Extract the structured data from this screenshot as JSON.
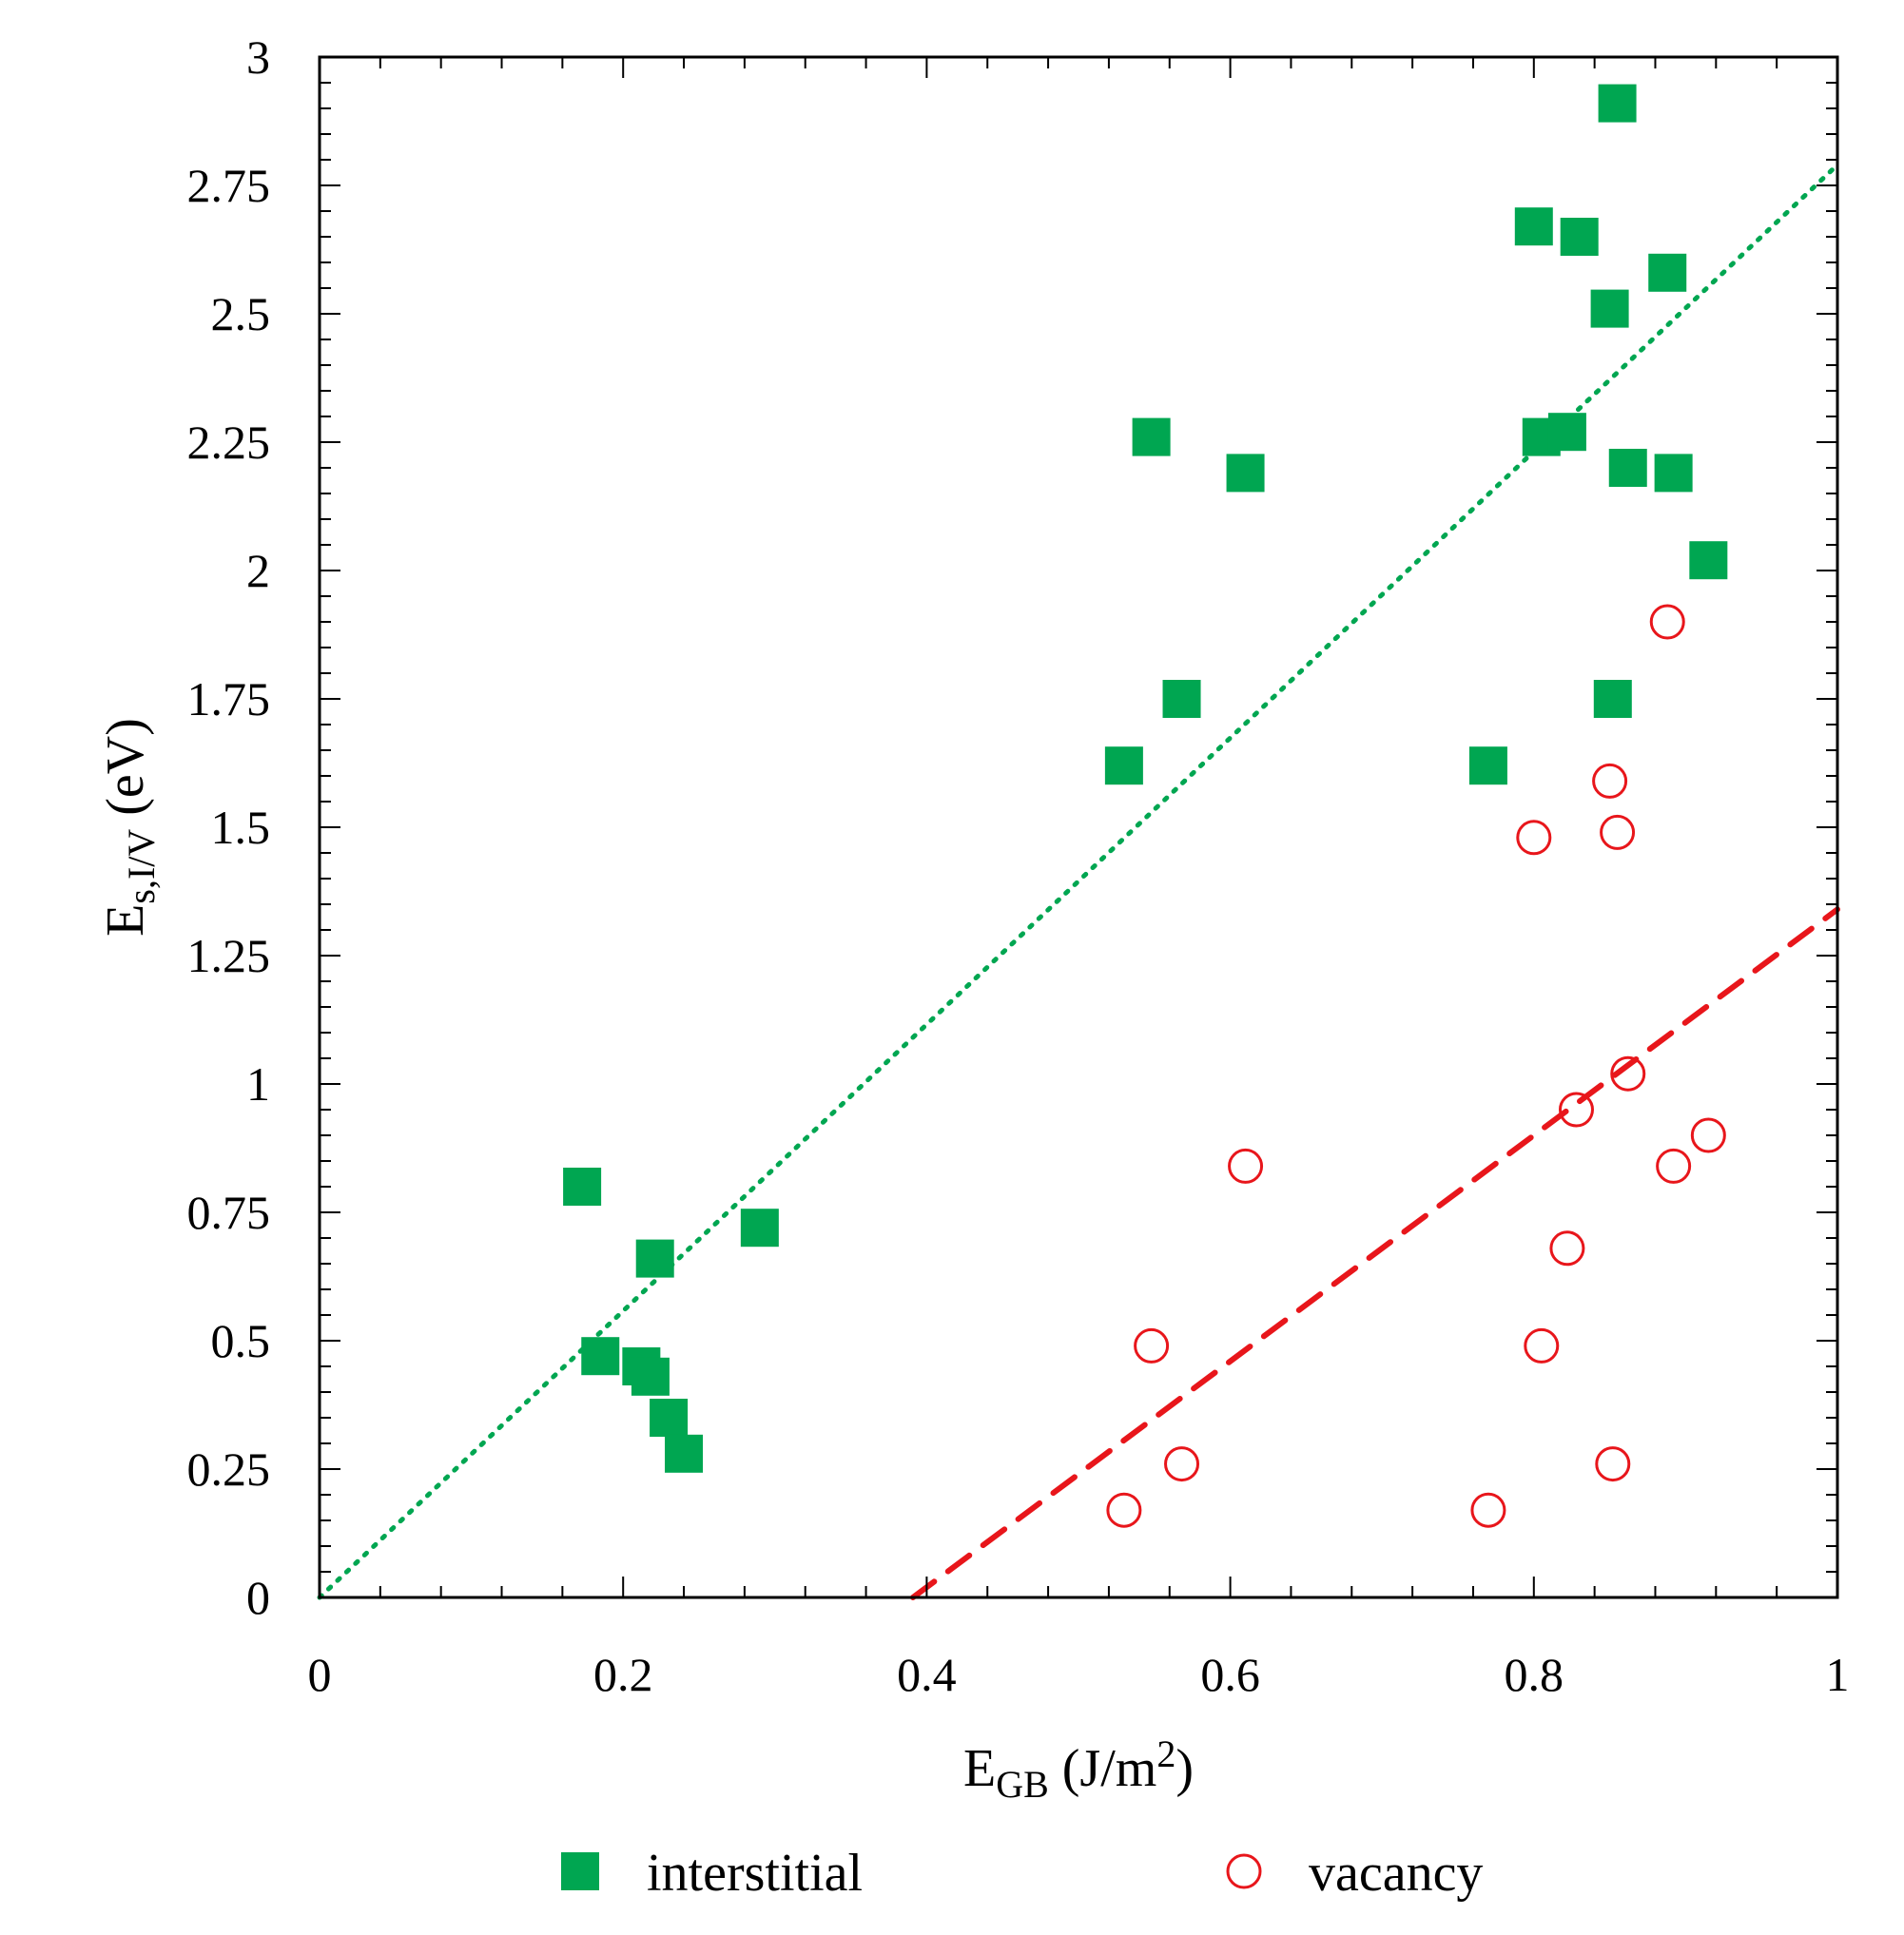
{
  "chart_data": {
    "type": "scatter",
    "xlabel": {
      "main": "E",
      "sub": "GB",
      "unit_pre": " (J/m",
      "sup": "2",
      "unit_post": ")"
    },
    "ylabel": {
      "main": "E",
      "sub": "s,I/V",
      "unit": " (eV)"
    },
    "xlim": [
      0,
      1
    ],
    "ylim": [
      0,
      3
    ],
    "x_ticks": [
      0,
      0.2,
      0.4,
      0.6,
      0.8,
      1
    ],
    "x_tick_labels": [
      "0",
      "0.2",
      "0.4",
      "0.6",
      "0.8",
      "1"
    ],
    "y_ticks": [
      0,
      0.25,
      0.5,
      0.75,
      1,
      1.25,
      1.5,
      1.75,
      2,
      2.25,
      2.5,
      2.75,
      3
    ],
    "y_tick_labels": [
      "0",
      "0.25",
      "0.5",
      "0.75",
      "1",
      "1.25",
      "1.5",
      "1.75",
      "2",
      "2.25",
      "2.5",
      "2.75",
      "3"
    ],
    "grid": false,
    "legend_position": "bottom",
    "series": [
      {
        "name": "interstitial",
        "marker": "filled-square",
        "color": "#00a651",
        "points": [
          [
            0.173,
            0.8
          ],
          [
            0.185,
            0.47
          ],
          [
            0.212,
            0.45
          ],
          [
            0.218,
            0.43
          ],
          [
            0.221,
            0.66
          ],
          [
            0.23,
            0.35
          ],
          [
            0.24,
            0.28
          ],
          [
            0.29,
            0.72
          ],
          [
            0.53,
            1.62
          ],
          [
            0.548,
            2.26
          ],
          [
            0.568,
            1.75
          ],
          [
            0.61,
            2.19
          ],
          [
            0.77,
            1.62
          ],
          [
            0.8,
            2.67
          ],
          [
            0.805,
            2.26
          ],
          [
            0.822,
            2.27
          ],
          [
            0.83,
            2.65
          ],
          [
            0.85,
            2.51
          ],
          [
            0.852,
            1.75
          ],
          [
            0.855,
            2.91
          ],
          [
            0.862,
            2.2
          ],
          [
            0.888,
            2.58
          ],
          [
            0.892,
            2.19
          ],
          [
            0.915,
            2.02
          ]
        ]
      },
      {
        "name": "vacancy",
        "marker": "open-circle",
        "color": "#e8161b",
        "points": [
          [
            0.53,
            0.17
          ],
          [
            0.548,
            0.49
          ],
          [
            0.568,
            0.26
          ],
          [
            0.61,
            0.84
          ],
          [
            0.77,
            0.17
          ],
          [
            0.8,
            1.48
          ],
          [
            0.805,
            0.49
          ],
          [
            0.822,
            0.68
          ],
          [
            0.828,
            0.95
          ],
          [
            0.85,
            1.59
          ],
          [
            0.852,
            0.26
          ],
          [
            0.855,
            1.49
          ],
          [
            0.862,
            1.02
          ],
          [
            0.888,
            1.9
          ],
          [
            0.892,
            0.84
          ],
          [
            0.915,
            0.9
          ]
        ]
      }
    ],
    "fit_lines": [
      {
        "series": "interstitial",
        "style": "dotted",
        "color": "#00a651",
        "slope": 2.79,
        "intercept": 0
      },
      {
        "series": "vacancy",
        "style": "dashed",
        "color": "#e8161b",
        "slope": 2.2,
        "intercept": -0.86
      }
    ]
  }
}
